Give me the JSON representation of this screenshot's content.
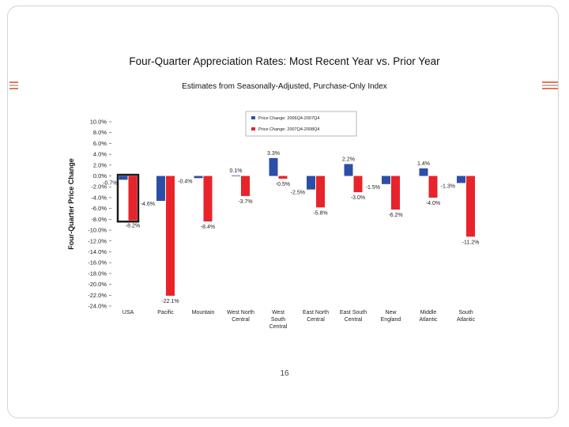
{
  "slide": {
    "page_number": "16",
    "accent_color": "#e07a50"
  },
  "chart_data": {
    "type": "bar",
    "title": "Four-Quarter Appreciation Rates: Most Recent Year vs. Prior Year",
    "subtitle": "Estimates from Seasonally-Adjusted, Purchase-Only Index",
    "xlabel": "",
    "ylabel": "Four-Quarter Price Change",
    "ylim": [
      -24,
      10
    ],
    "ytick_step": 2,
    "grid": false,
    "legend_position": "top-center",
    "categories": [
      [
        "USA"
      ],
      [
        "Pacific"
      ],
      [
        "Mountain"
      ],
      [
        "West North",
        "Central"
      ],
      [
        "West",
        "South",
        "Central"
      ],
      [
        "East North",
        "Central"
      ],
      [
        "East South",
        "Central"
      ],
      [
        "New",
        "England"
      ],
      [
        "Middle",
        "Atlantic"
      ],
      [
        "South",
        "Atlantic"
      ]
    ],
    "series": [
      {
        "name": "Price Change: 2006Q4-2007Q4",
        "color": "#2b4fa8",
        "values": [
          -0.7,
          -4.6,
          -0.4,
          0.1,
          3.3,
          -2.5,
          2.2,
          -1.5,
          1.4,
          -1.3
        ],
        "labels": [
          "-0.7%",
          "-4.6%",
          "-0.4%",
          "0.1%",
          "3.3%",
          "-2.5%",
          "2.2%",
          "-1.5%",
          "1.4%",
          "-1.3%"
        ]
      },
      {
        "name": "Price Change: 2007Q4-2008Q4",
        "color": "#e8232a",
        "values": [
          -8.2,
          -22.1,
          -8.4,
          -3.7,
          -0.5,
          -5.8,
          -3.0,
          -6.2,
          -4.0,
          -11.2
        ],
        "labels": [
          "-8.2%",
          "-22.1%",
          "-8.4%",
          "-3.7%",
          "-0.5%",
          "-5.8%",
          "-3.0%",
          "-6.2%",
          "-4.0%",
          "-11.2%"
        ]
      }
    ],
    "highlight_category": "USA",
    "highlight_color": "#1c1c1c"
  }
}
